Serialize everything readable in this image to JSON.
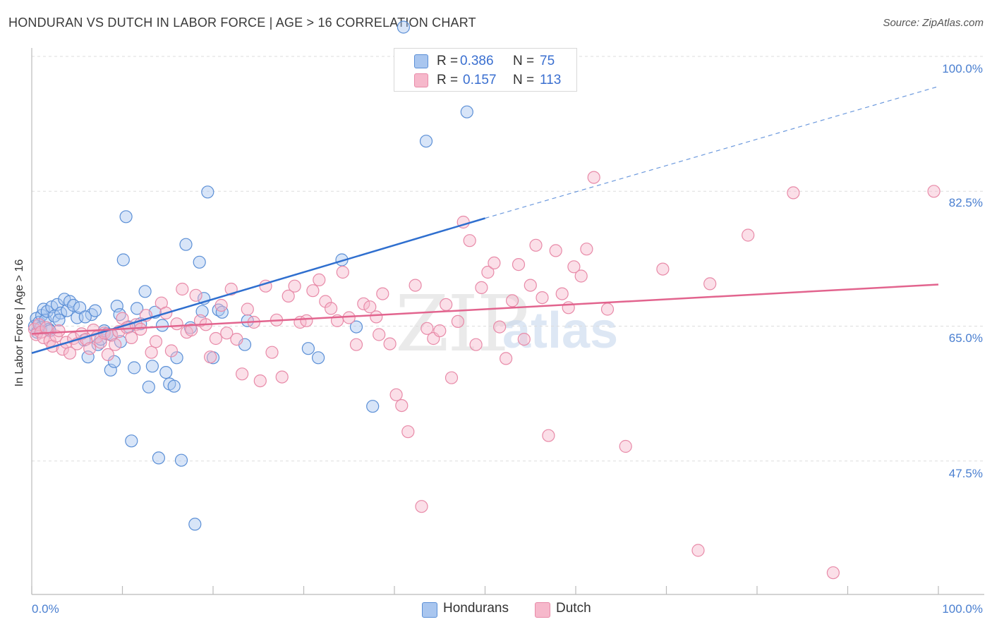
{
  "header": {
    "title": "HONDURAN VS DUTCH IN LABOR FORCE | AGE > 16 CORRELATION CHART",
    "source": "Source: ZipAtlas.com"
  },
  "watermark": {
    "zip": "ZIP",
    "atlas": "atlas"
  },
  "colors": {
    "blue_fill": "#a9c6ef",
    "blue_stroke": "#5b8fd6",
    "blue_line": "#2f6fcf",
    "pink_fill": "#f6b8cb",
    "pink_stroke": "#e88aa8",
    "pink_line": "#e2648e",
    "tick_text": "#4a7fd0",
    "grid": "#dddddd"
  },
  "legend_top": [
    {
      "r_label": "R =",
      "r_value": "0.386",
      "n_label": "N =",
      "n_value": "75",
      "color": "#a9c6ef",
      "border": "#5b8fd6"
    },
    {
      "r_label": "R =",
      "r_value": "0.157",
      "n_label": "N =",
      "n_value": "113",
      "color": "#f6b8cb",
      "border": "#e88aa8"
    }
  ],
  "legend_bottom": [
    {
      "label": "Hondurans",
      "color": "#a9c6ef",
      "border": "#5b8fd6"
    },
    {
      "label": "Dutch",
      "color": "#f6b8cb",
      "border": "#e88aa8"
    }
  ],
  "chart_data": {
    "type": "scatter",
    "title": "HONDURAN VS DUTCH IN LABOR FORCE | AGE > 16 CORRELATION CHART",
    "xlabel": "",
    "ylabel": "In Labor Force | Age > 16",
    "xlim": [
      0,
      100
    ],
    "ylim": [
      30.5,
      101.5
    ],
    "x_tick_labels": [
      "0.0%",
      "100.0%"
    ],
    "y_ticks": [
      {
        "value": 100,
        "label": "100.0%"
      },
      {
        "value": 82.5,
        "label": "82.5%"
      },
      {
        "value": 65,
        "label": "65.0%"
      },
      {
        "value": 47.5,
        "label": "47.5%"
      }
    ],
    "grid": true,
    "series": [
      {
        "name": "Hondurans",
        "r": 0.386,
        "n": 75,
        "trend": {
          "x0": 0,
          "y0": 61.5,
          "x1": 50,
          "y1": 79.0,
          "dashed_to_x": 100,
          "dashed_to_y": 96.1
        },
        "points": [
          [
            0.3,
            65.0
          ],
          [
            0.5,
            66.0
          ],
          [
            0.6,
            64.2
          ],
          [
            0.8,
            65.5
          ],
          [
            1.0,
            64.8
          ],
          [
            1.1,
            66.4
          ],
          [
            1.3,
            67.2
          ],
          [
            1.5,
            65.8
          ],
          [
            1.7,
            66.9
          ],
          [
            1.9,
            64.6
          ],
          [
            2.2,
            67.5
          ],
          [
            2.5,
            66.3
          ],
          [
            2.8,
            67.8
          ],
          [
            3.2,
            66.7
          ],
          [
            3.6,
            68.5
          ],
          [
            3.9,
            67.0
          ],
          [
            4.2,
            68.2
          ],
          [
            4.6,
            67.7
          ],
          [
            5.0,
            66.1
          ],
          [
            5.3,
            67.4
          ],
          [
            5.8,
            63.2
          ],
          [
            6.2,
            61.0
          ],
          [
            6.6,
            66.5
          ],
          [
            7.0,
            67.0
          ],
          [
            7.3,
            62.6
          ],
          [
            7.6,
            63.3
          ],
          [
            8.0,
            64.4
          ],
          [
            8.3,
            64.0
          ],
          [
            8.7,
            59.3
          ],
          [
            9.1,
            60.4
          ],
          [
            9.4,
            67.6
          ],
          [
            9.7,
            66.5
          ],
          [
            10.1,
            73.6
          ],
          [
            10.4,
            79.2
          ],
          [
            10.7,
            64.9
          ],
          [
            11.0,
            50.1
          ],
          [
            11.3,
            59.6
          ],
          [
            11.6,
            67.3
          ],
          [
            12.0,
            65.3
          ],
          [
            12.5,
            69.5
          ],
          [
            12.9,
            57.1
          ],
          [
            13.3,
            59.8
          ],
          [
            13.6,
            66.8
          ],
          [
            14.0,
            47.9
          ],
          [
            14.4,
            65.1
          ],
          [
            14.8,
            59.0
          ],
          [
            15.2,
            57.5
          ],
          [
            15.7,
            57.2
          ],
          [
            16.0,
            60.9
          ],
          [
            16.5,
            47.6
          ],
          [
            17.0,
            75.6
          ],
          [
            17.5,
            64.8
          ],
          [
            18.0,
            39.3
          ],
          [
            18.5,
            73.3
          ],
          [
            19.0,
            68.6
          ],
          [
            19.4,
            82.4
          ],
          [
            20.0,
            60.9
          ],
          [
            20.6,
            67.1
          ],
          [
            21.0,
            66.8
          ],
          [
            23.5,
            62.6
          ],
          [
            23.8,
            65.7
          ],
          [
            30.5,
            62.1
          ],
          [
            31.6,
            60.9
          ],
          [
            34.2,
            73.6
          ],
          [
            35.8,
            64.9
          ],
          [
            37.6,
            54.6
          ],
          [
            41.0,
            103.8
          ],
          [
            48.0,
            92.8
          ],
          [
            43.5,
            89.0
          ],
          [
            18.8,
            66.9
          ],
          [
            8.8,
            63.9
          ],
          [
            5.9,
            66.2
          ],
          [
            3.0,
            65.8
          ],
          [
            2.0,
            64.4
          ],
          [
            9.8,
            63.0
          ]
        ]
      },
      {
        "name": "Dutch",
        "r": 0.157,
        "n": 113,
        "trend": {
          "x0": 0,
          "y0": 64.0,
          "x1": 100,
          "y1": 70.4
        },
        "points": [
          [
            0.3,
            64.6
          ],
          [
            0.5,
            63.9
          ],
          [
            0.8,
            65.2
          ],
          [
            1.0,
            64.2
          ],
          [
            1.3,
            63.5
          ],
          [
            1.6,
            64.8
          ],
          [
            2.0,
            63.1
          ],
          [
            2.3,
            62.4
          ],
          [
            2.7,
            63.7
          ],
          [
            3.0,
            64.4
          ],
          [
            3.4,
            62.0
          ],
          [
            3.8,
            62.9
          ],
          [
            4.2,
            61.5
          ],
          [
            4.6,
            63.4
          ],
          [
            5.0,
            62.7
          ],
          [
            5.5,
            64.0
          ],
          [
            6.0,
            63.3
          ],
          [
            6.4,
            62.1
          ],
          [
            6.8,
            64.5
          ],
          [
            7.2,
            63.6
          ],
          [
            7.6,
            62.9
          ],
          [
            8.0,
            64.1
          ],
          [
            8.4,
            61.3
          ],
          [
            8.8,
            63.8
          ],
          [
            9.2,
            62.6
          ],
          [
            9.6,
            64.3
          ],
          [
            10.0,
            66.0
          ],
          [
            10.5,
            64.8
          ],
          [
            11.0,
            63.5
          ],
          [
            11.5,
            65.2
          ],
          [
            12.0,
            64.6
          ],
          [
            12.6,
            66.4
          ],
          [
            13.2,
            61.6
          ],
          [
            13.7,
            63.0
          ],
          [
            14.3,
            68.0
          ],
          [
            14.8,
            66.7
          ],
          [
            15.4,
            61.8
          ],
          [
            16.0,
            65.3
          ],
          [
            16.6,
            69.8
          ],
          [
            17.1,
            64.2
          ],
          [
            17.6,
            64.5
          ],
          [
            18.1,
            69.0
          ],
          [
            18.6,
            65.7
          ],
          [
            19.2,
            65.2
          ],
          [
            19.7,
            61.0
          ],
          [
            20.3,
            63.4
          ],
          [
            20.9,
            67.7
          ],
          [
            21.5,
            64.1
          ],
          [
            22.0,
            69.8
          ],
          [
            22.6,
            63.3
          ],
          [
            23.2,
            58.8
          ],
          [
            23.8,
            67.2
          ],
          [
            24.5,
            65.5
          ],
          [
            25.2,
            57.9
          ],
          [
            25.8,
            70.2
          ],
          [
            26.5,
            61.6
          ],
          [
            27.0,
            65.8
          ],
          [
            27.6,
            58.4
          ],
          [
            28.3,
            68.9
          ],
          [
            29.0,
            70.2
          ],
          [
            29.6,
            65.5
          ],
          [
            30.3,
            65.7
          ],
          [
            31.0,
            69.6
          ],
          [
            31.7,
            71.0
          ],
          [
            32.4,
            68.2
          ],
          [
            33.0,
            67.3
          ],
          [
            33.7,
            65.7
          ],
          [
            34.3,
            72.0
          ],
          [
            35.0,
            66.1
          ],
          [
            35.8,
            62.6
          ],
          [
            36.6,
            67.9
          ],
          [
            37.3,
            67.5
          ],
          [
            38.0,
            66.2
          ],
          [
            38.7,
            69.2
          ],
          [
            39.5,
            62.7
          ],
          [
            40.2,
            56.1
          ],
          [
            40.8,
            54.7
          ],
          [
            41.5,
            51.3
          ],
          [
            42.3,
            70.3
          ],
          [
            43.0,
            41.6
          ],
          [
            43.6,
            64.7
          ],
          [
            44.3,
            63.4
          ],
          [
            45.0,
            64.4
          ],
          [
            45.7,
            67.8
          ],
          [
            46.3,
            58.3
          ],
          [
            47.0,
            65.6
          ],
          [
            47.6,
            78.5
          ],
          [
            48.3,
            76.1
          ],
          [
            49.0,
            62.6
          ],
          [
            49.6,
            70.0
          ],
          [
            50.3,
            72.0
          ],
          [
            51.0,
            73.2
          ],
          [
            51.6,
            64.9
          ],
          [
            52.3,
            60.8
          ],
          [
            53.0,
            68.3
          ],
          [
            53.7,
            73.0
          ],
          [
            54.3,
            63.3
          ],
          [
            55.0,
            70.3
          ],
          [
            55.6,
            75.5
          ],
          [
            56.3,
            68.7
          ],
          [
            57.0,
            50.8
          ],
          [
            57.8,
            74.8
          ],
          [
            58.5,
            69.2
          ],
          [
            59.2,
            67.4
          ],
          [
            59.8,
            72.7
          ],
          [
            60.6,
            71.5
          ],
          [
            61.2,
            75.0
          ],
          [
            62.0,
            84.3
          ],
          [
            63.5,
            67.2
          ],
          [
            65.5,
            49.4
          ],
          [
            69.6,
            72.4
          ],
          [
            73.5,
            35.9
          ],
          [
            74.8,
            70.5
          ],
          [
            79.0,
            76.8
          ],
          [
            84.0,
            82.3
          ],
          [
            88.4,
            33.0
          ],
          [
            99.5,
            82.5
          ],
          [
            38.3,
            63.9
          ]
        ]
      }
    ]
  },
  "axis_labels": {
    "y": "In Labor Force | Age > 16",
    "x_left": "0.0%",
    "x_right": "100.0%",
    "y_ticks": [
      "100.0%",
      "82.5%",
      "65.0%",
      "47.5%"
    ]
  }
}
